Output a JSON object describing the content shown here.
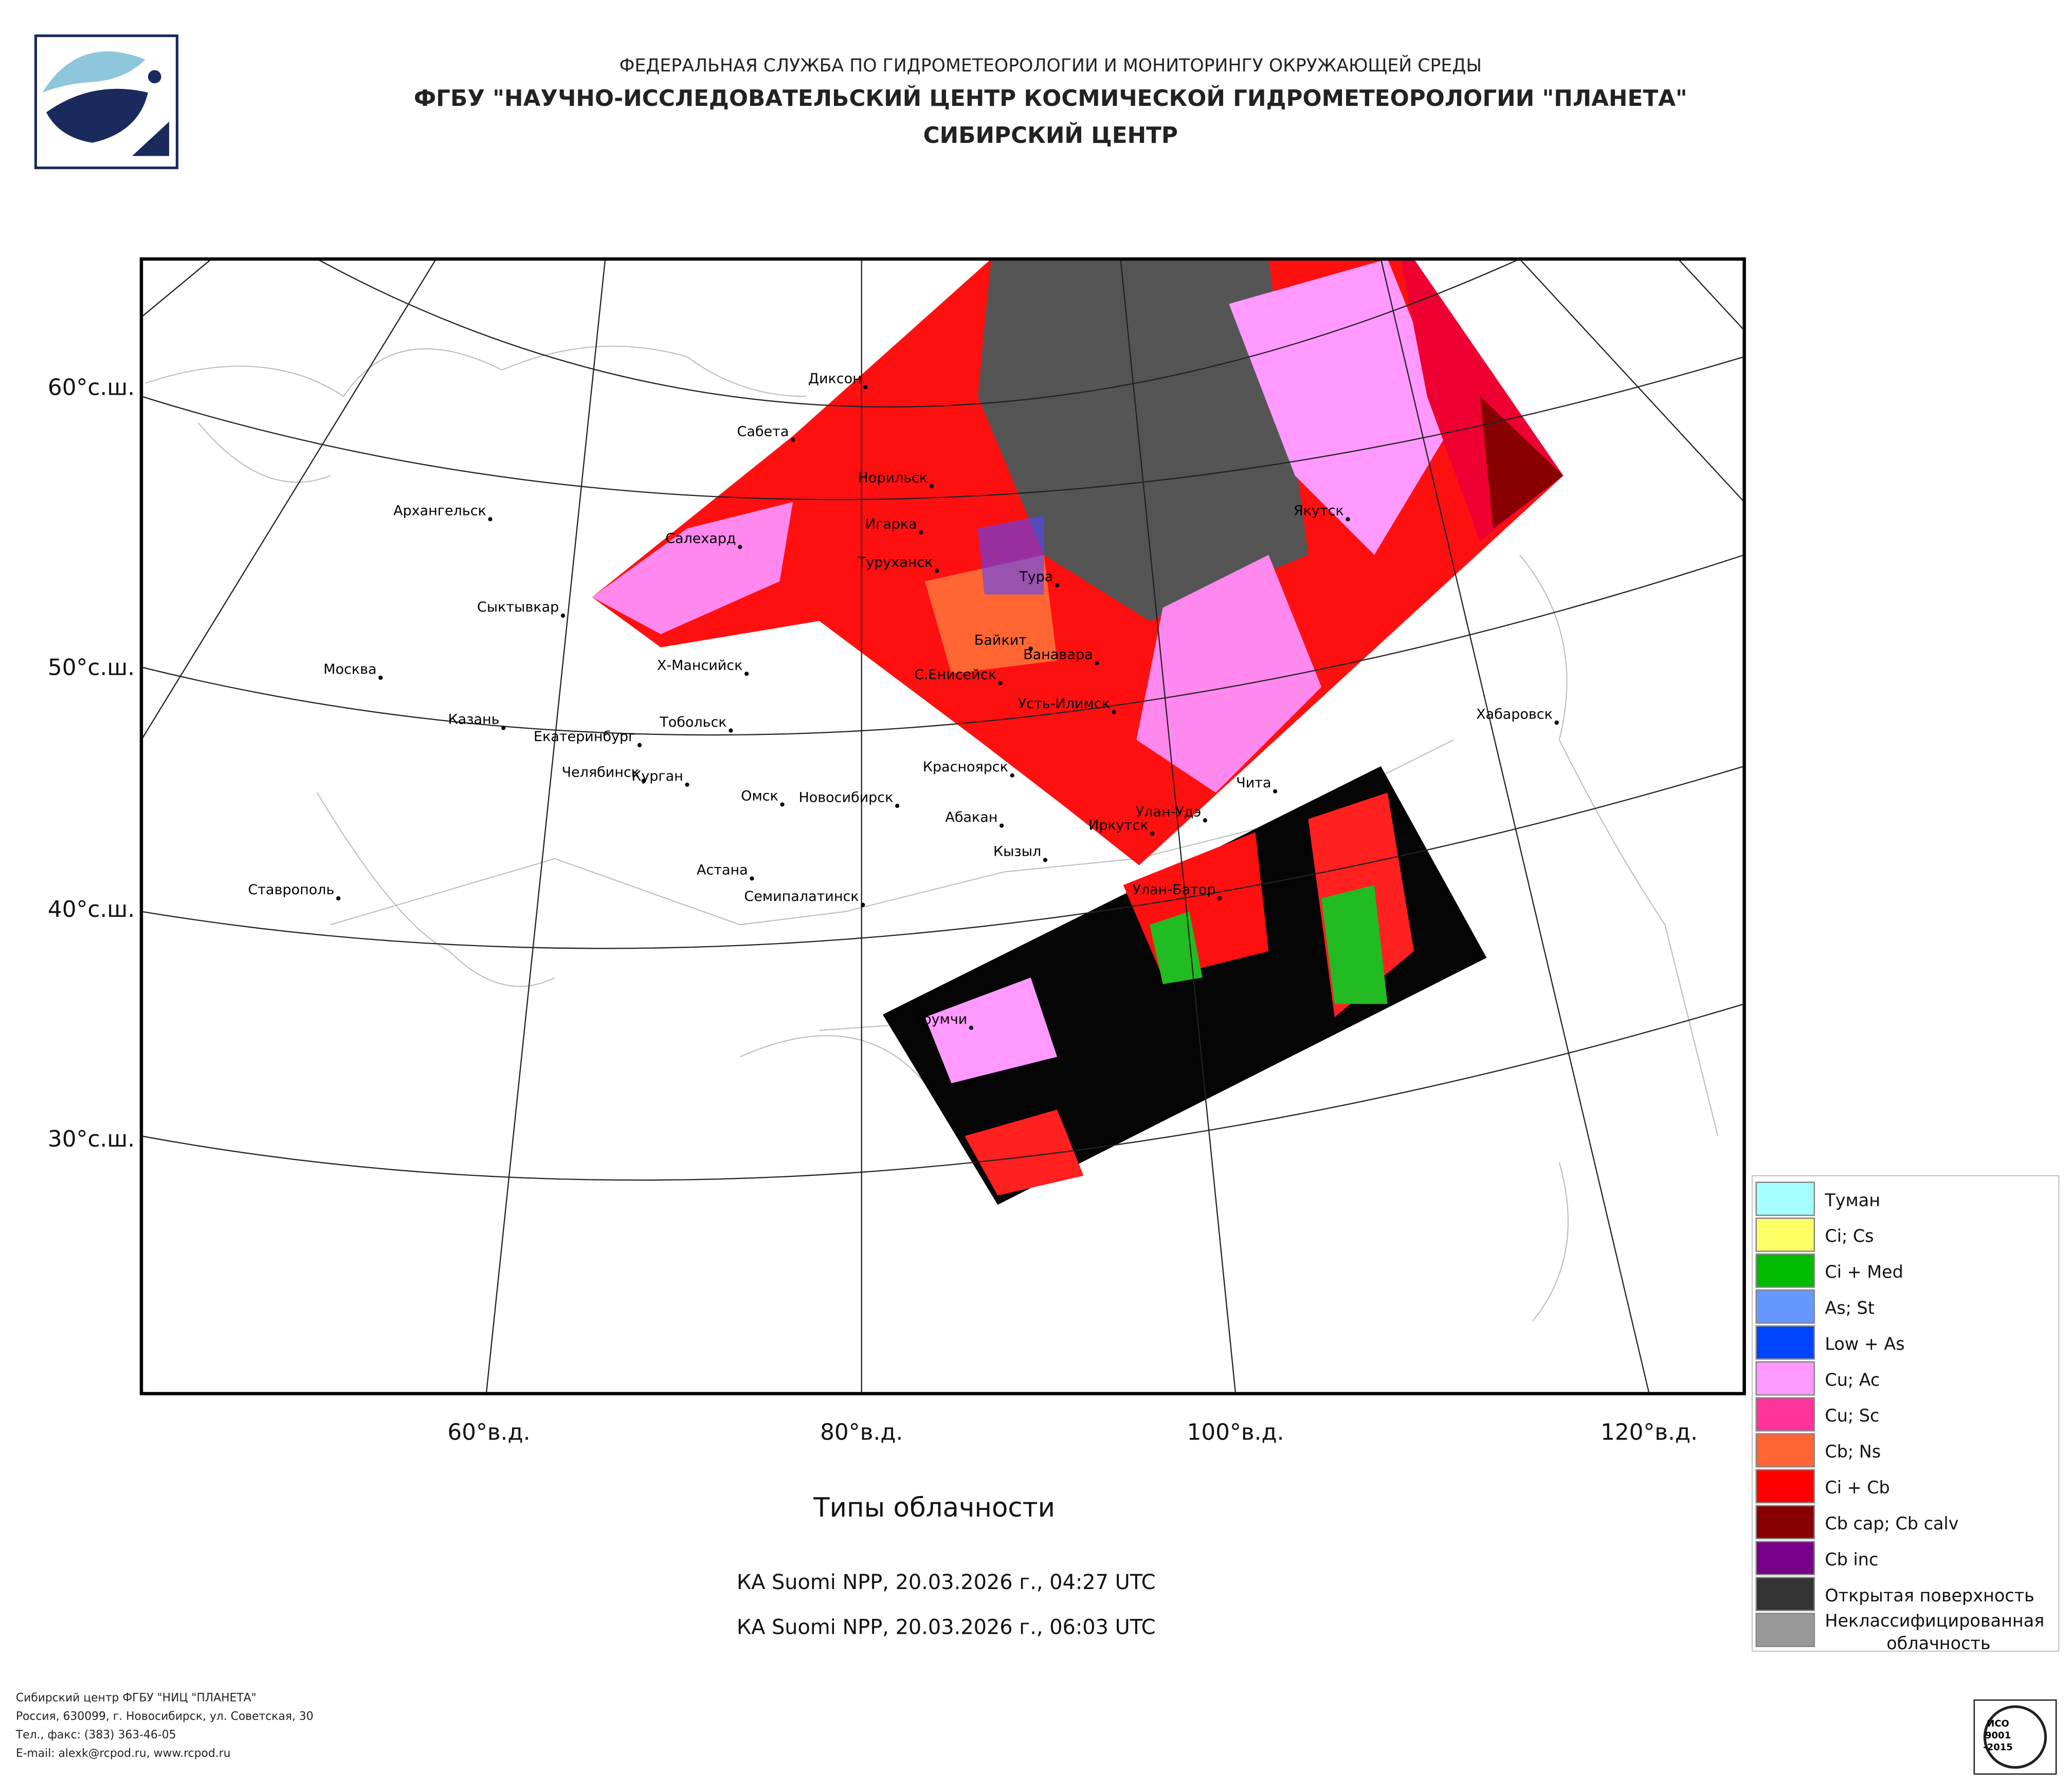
{
  "header": {
    "agency": "ФЕДЕРАЛЬНАЯ СЛУЖБА ПО ГИДРОМЕТЕОРОЛОГИИ И МОНИТОРИНГУ ОКРУЖАЮЩЕЙ СРЕДЫ",
    "institute": "ФГБУ \"НАУЧНО-ИССЛЕДОВАТЕЛЬСКИЙ ЦЕНТР КОСМИЧЕСКОЙ ГИДРОМЕТЕОРОЛОГИИ \"ПЛАНЕТА\"",
    "center": "СИБИРСКИЙ ЦЕНТР"
  },
  "map": {
    "lat_labels": [
      "60°с.ш.",
      "50°с.ш.",
      "40°с.ш.",
      "30°с.ш."
    ],
    "lon_labels": [
      "60°в.д.",
      "80°в.д.",
      "100°в.д.",
      "120°в.д."
    ],
    "cities": [
      "Диксон",
      "Сабета",
      "Норильск",
      "Игарка",
      "Салехард",
      "Туруханск",
      "Тура",
      "Архангельск",
      "Сыктывкар",
      "Байкит",
      "Ванавара",
      "Х-Мансийск",
      "Москва",
      "С.Енисейск",
      "Усть-Илимск",
      "Казань",
      "Тобольск",
      "Екатеринбург",
      "Красноярск",
      "Челябинск",
      "Курган",
      "Омск",
      "Новосибирск",
      "Абакан",
      "Улан-Удэ",
      "Иркутск",
      "Чита",
      "Кызыл",
      "Хабаровск",
      "Астана",
      "Семипалатинск",
      "Улан-Батор",
      "Ставрополь",
      "Якутск",
      "Урумчи"
    ]
  },
  "caption": {
    "title": "Типы облачности",
    "passes": [
      "КА Suomi NPP, 20.03.2026 г., 04:27 UTC",
      "КА Suomi NPP, 20.03.2026 г., 06:03 UTC"
    ]
  },
  "legend": [
    {
      "label": "Туман",
      "color": "#a6ffff"
    },
    {
      "label": "Ci; Cs",
      "color": "#ffff66"
    },
    {
      "label": "Ci + Med",
      "color": "#00bb00"
    },
    {
      "label": "As; St",
      "color": "#6699ff"
    },
    {
      "label": "Low + As",
      "color": "#0044ff"
    },
    {
      "label": "Cu; Ac",
      "color": "#ff99ff"
    },
    {
      "label": "Cu; Sc",
      "color": "#ff3399"
    },
    {
      "label": "Cb; Ns",
      "color": "#ff6633"
    },
    {
      "label": "Ci + Cb",
      "color": "#ff0000"
    },
    {
      "label": "Cb cap; Cb calv",
      "color": "#880000"
    },
    {
      "label": "Cb inc",
      "color": "#770088"
    },
    {
      "label": "Открытая поверхность",
      "color": "#333333"
    },
    {
      "label_lines": [
        "Неклассифицированная",
        "облачность"
      ],
      "color": "#999999"
    }
  ],
  "footer": [
    "Сибирский центр ФГБУ \"НИЦ \"ПЛАНЕТА\"",
    "Россия, 630099, г. Новосибирск, ул. Советская, 30",
    "Тел., факс: (383) 363-46-05",
    "E-mail: alexk@rcpod.ru, www.rcpod.ru"
  ],
  "badge": [
    "ИСО",
    "9001",
    "-2015"
  ]
}
